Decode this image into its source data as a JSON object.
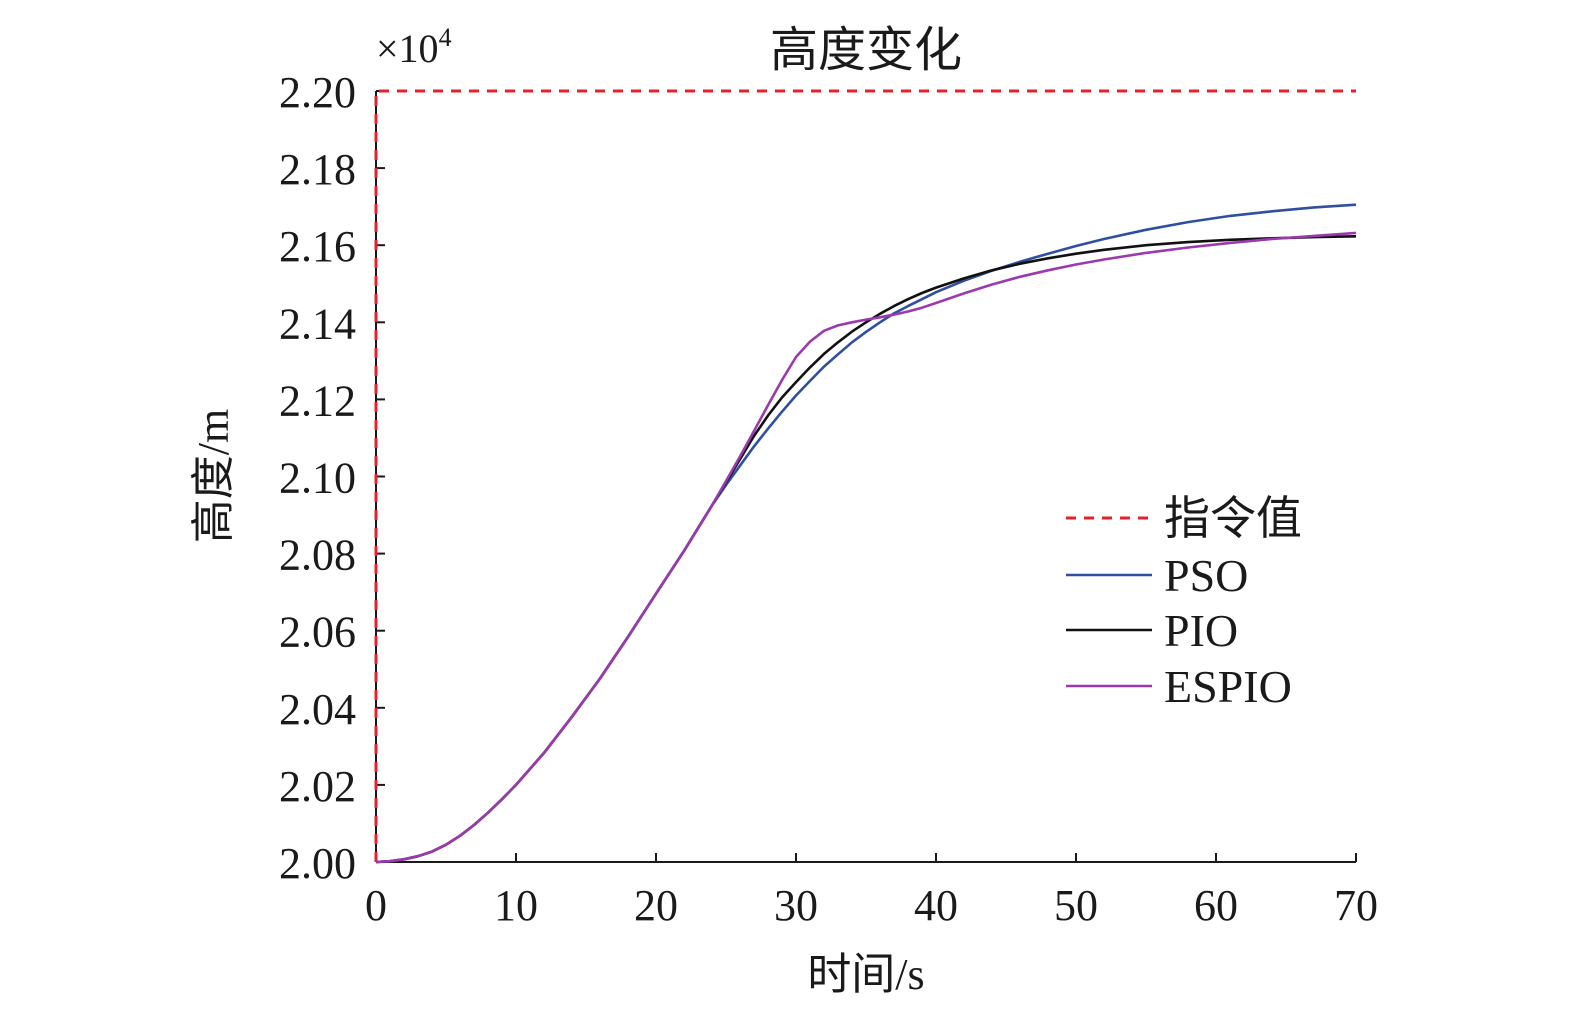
{
  "chart_data": {
    "type": "line",
    "title": "高度变化",
    "xlabel": "时间/s",
    "ylabel": "高度/m",
    "scale_label": {
      "base": "×10",
      "exponent": "4"
    },
    "xlim": [
      0,
      70
    ],
    "ylim": [
      2.0,
      2.2
    ],
    "xticks": [
      0,
      10,
      20,
      30,
      40,
      50,
      60,
      70
    ],
    "xtick_labels": [
      "0",
      "10",
      "20",
      "30",
      "40",
      "50",
      "60",
      "70"
    ],
    "yticks": [
      2.0,
      2.02,
      2.04,
      2.06,
      2.08,
      2.1,
      2.12,
      2.14,
      2.16,
      2.18,
      2.2
    ],
    "ytick_labels": [
      "2.00",
      "2.02",
      "2.04",
      "2.06",
      "2.08",
      "2.10",
      "2.12",
      "2.14",
      "2.16",
      "2.18",
      "2.20"
    ],
    "grid": false,
    "legend": "right",
    "series": [
      {
        "name": "指令值",
        "color": "#e8202a",
        "style": "dashed",
        "x": [
          0,
          0,
          70
        ],
        "y": [
          2.0,
          2.2,
          2.2
        ]
      },
      {
        "name": "PSO",
        "color": "#2f4f9f",
        "style": "solid",
        "x": [
          0,
          1,
          2,
          3,
          4,
          5,
          6,
          7,
          8,
          9,
          10,
          12,
          14,
          16,
          18,
          20,
          22,
          24,
          25,
          26,
          27,
          28,
          29,
          30,
          31,
          32,
          33,
          34,
          35,
          36,
          37,
          38,
          39,
          40,
          42,
          44,
          46,
          48,
          50,
          52,
          55,
          58,
          61,
          64,
          67,
          70
        ],
        "y": [
          2.0,
          2.0002,
          2.0007,
          2.0015,
          2.0027,
          2.0045,
          2.0068,
          2.0096,
          2.0128,
          2.0163,
          2.02,
          2.0283,
          2.0377,
          2.0476,
          2.0584,
          2.0696,
          2.0807,
          2.0925,
          2.0978,
          2.1028,
          2.1078,
          2.1124,
          2.1168,
          2.121,
          2.1248,
          2.1285,
          2.1317,
          2.1348,
          2.1375,
          2.14,
          2.1423,
          2.1442,
          2.146,
          2.1478,
          2.1508,
          2.1534,
          2.1557,
          2.1578,
          2.1598,
          2.1616,
          2.164,
          2.166,
          2.1676,
          2.1688,
          2.1698,
          2.1705
        ]
      },
      {
        "name": "PIO",
        "color": "#111111",
        "style": "solid",
        "x": [
          0,
          1,
          2,
          3,
          4,
          5,
          6,
          7,
          8,
          9,
          10,
          12,
          14,
          16,
          18,
          20,
          22,
          24,
          25,
          26,
          27,
          28,
          29,
          30,
          31,
          32,
          33,
          34,
          35,
          36,
          37,
          38,
          39,
          40,
          42,
          44,
          46,
          48,
          50,
          52,
          55,
          58,
          61,
          64,
          67,
          70
        ],
        "y": [
          2.0,
          2.0002,
          2.0007,
          2.0015,
          2.0027,
          2.0045,
          2.0068,
          2.0096,
          2.0128,
          2.0163,
          2.02,
          2.0283,
          2.0377,
          2.0476,
          2.0584,
          2.0696,
          2.0807,
          2.0925,
          2.0985,
          2.1045,
          2.1105,
          2.1158,
          2.1205,
          2.1245,
          2.1283,
          2.1318,
          2.1348,
          2.1376,
          2.14,
          2.1422,
          2.1442,
          2.146,
          2.1476,
          2.149,
          2.1514,
          2.1535,
          2.1552,
          2.1566,
          2.1578,
          2.1588,
          2.16,
          2.1608,
          2.1614,
          2.1618,
          2.1621,
          2.1623
        ]
      },
      {
        "name": "ESPIO",
        "color": "#9a3aae",
        "style": "solid",
        "x": [
          0,
          1,
          2,
          3,
          4,
          5,
          6,
          7,
          8,
          9,
          10,
          12,
          14,
          16,
          18,
          20,
          22,
          24,
          25,
          26,
          27,
          28,
          29,
          30,
          31,
          32,
          33,
          34,
          35,
          36,
          37,
          38,
          39,
          40,
          42,
          44,
          46,
          48,
          50,
          52,
          55,
          58,
          61,
          64,
          67,
          70
        ],
        "y": [
          2.0,
          2.0002,
          2.0007,
          2.0015,
          2.0027,
          2.0045,
          2.0068,
          2.0096,
          2.0128,
          2.0163,
          2.02,
          2.0283,
          2.0377,
          2.0476,
          2.0584,
          2.0696,
          2.0807,
          2.0925,
          2.0988,
          2.1052,
          2.1118,
          2.1185,
          2.125,
          2.131,
          2.135,
          2.1378,
          2.1392,
          2.14,
          2.1407,
          2.1413,
          2.142,
          2.1428,
          2.1438,
          2.145,
          2.1475,
          2.1498,
          2.1518,
          2.1535,
          2.155,
          2.1563,
          2.158,
          2.1594,
          2.1606,
          2.1616,
          2.1624,
          2.1632
        ]
      }
    ]
  }
}
